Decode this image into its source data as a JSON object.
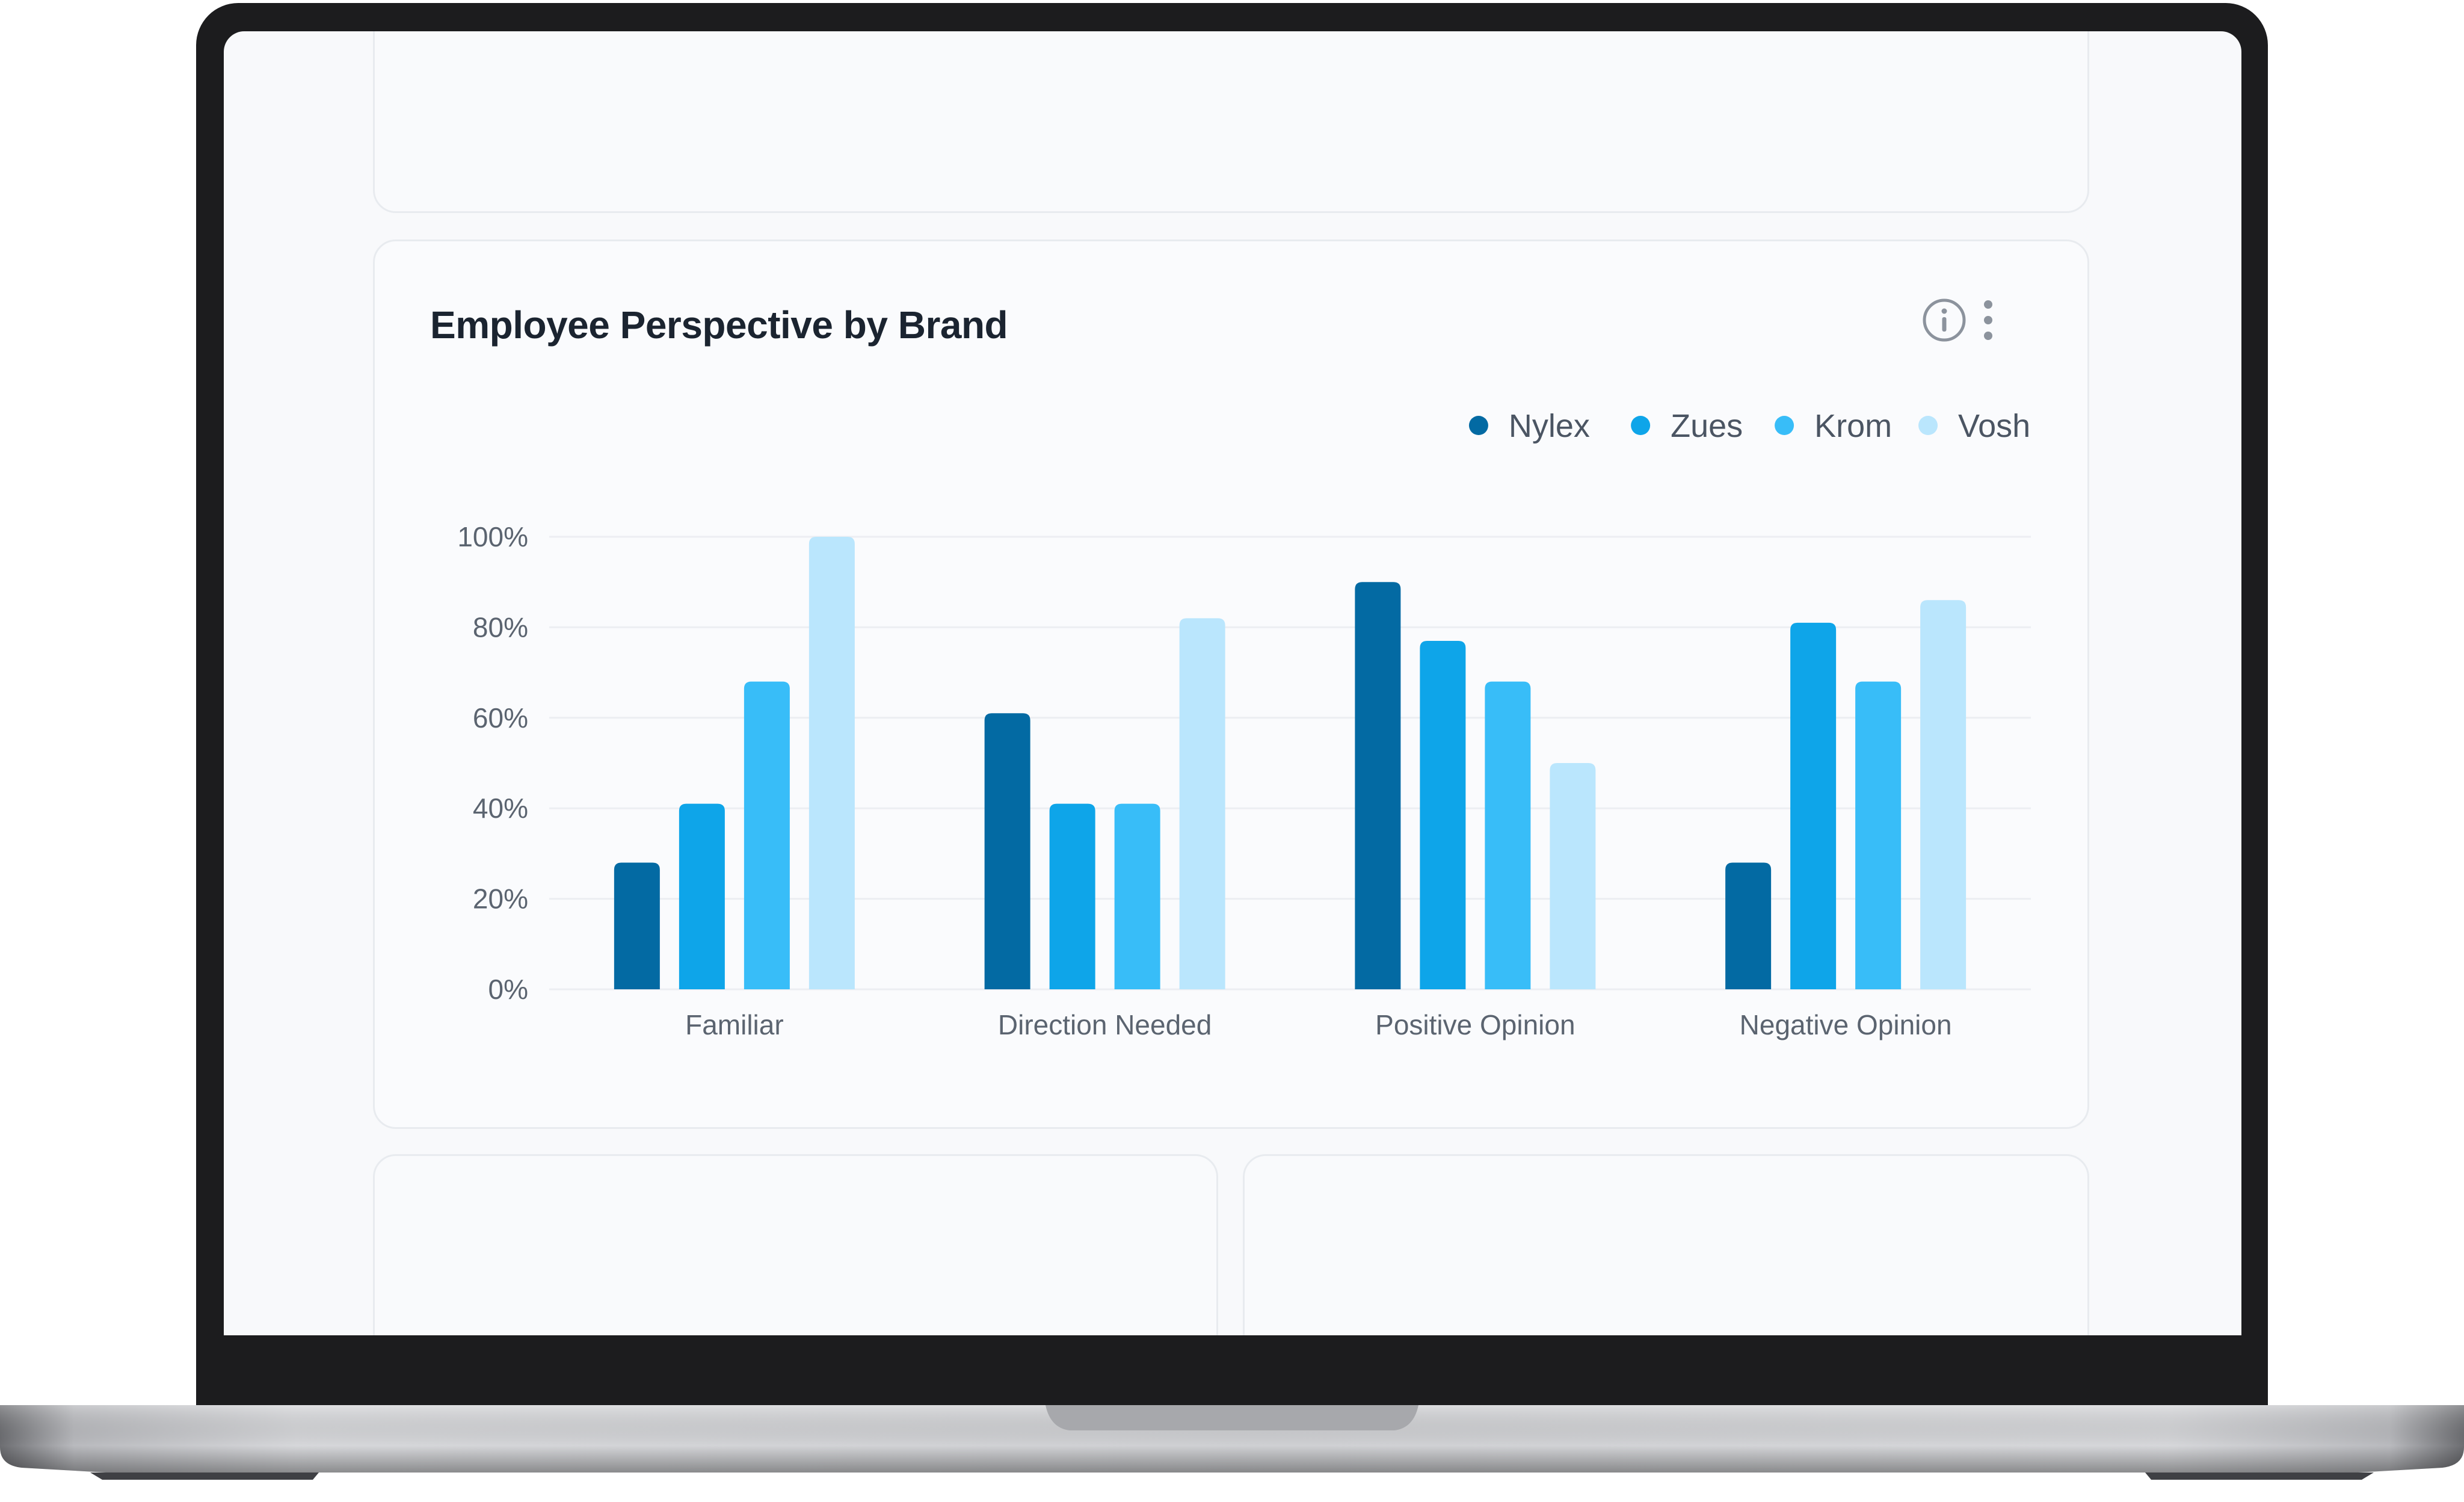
{
  "card": {
    "title": "Employee Perspective by Brand"
  },
  "colors": {
    "Nylex": "#036aa3",
    "Zues": "#0ea5e9",
    "Krom": "#38bdf8",
    "Vosh": "#bae6fd"
  },
  "chart_data": {
    "type": "bar",
    "title": "Employee Perspective by Brand",
    "categories": [
      "Familiar",
      "Direction Needed",
      "Positive Opinion",
      "Negative Opinion"
    ],
    "series": [
      {
        "name": "Nylex",
        "values": [
          28,
          61,
          90,
          28
        ]
      },
      {
        "name": "Zues",
        "values": [
          41,
          41,
          77,
          81
        ]
      },
      {
        "name": "Krom",
        "values": [
          68,
          41,
          68,
          68
        ]
      },
      {
        "name": "Vosh",
        "values": [
          100,
          82,
          50,
          86
        ]
      }
    ],
    "yticks": [
      "0%",
      "20%",
      "40%",
      "60%",
      "80%",
      "100%"
    ],
    "ylim": [
      0,
      100
    ],
    "xlabel": "",
    "ylabel": "",
    "legend": "top-right",
    "grid": true
  }
}
